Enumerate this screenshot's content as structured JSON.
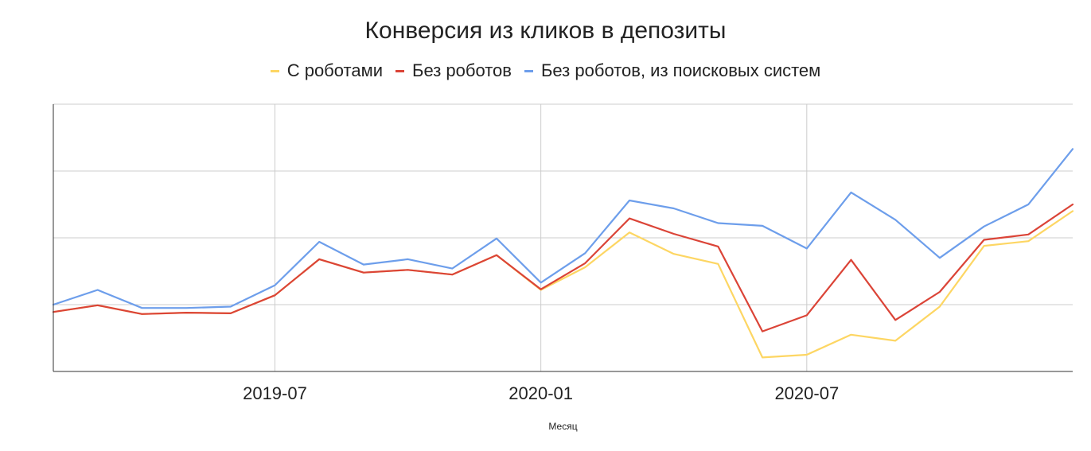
{
  "chart_data": {
    "type": "line",
    "title": "Конверсия из кликов в депозиты",
    "xlabel": "Месяц",
    "ylabel": "",
    "grid": true,
    "legend_position": "top",
    "x": [
      "2019-02",
      "2019-03",
      "2019-04",
      "2019-05",
      "2019-06",
      "2019-07",
      "2019-08",
      "2019-09",
      "2019-10",
      "2019-11",
      "2019-12",
      "2020-01",
      "2020-02",
      "2020-03",
      "2020-04",
      "2020-05",
      "2020-06",
      "2020-07",
      "2020-08",
      "2020-09",
      "2020-10",
      "2020-11",
      "2020-12",
      "2021-01"
    ],
    "x_ticks": [
      "2019-07",
      "2020-01",
      "2020-07"
    ],
    "ylim": [
      0,
      4
    ],
    "series": [
      {
        "name": "С роботами",
        "color": "#fdd663",
        "values": [
          0.89,
          0.99,
          0.86,
          0.88,
          0.87,
          1.14,
          1.68,
          1.48,
          1.52,
          1.45,
          1.74,
          1.22,
          1.56,
          2.08,
          1.76,
          1.61,
          0.21,
          0.25,
          0.55,
          0.46,
          0.97,
          1.88,
          1.95,
          2.4
        ]
      },
      {
        "name": "Без роботов",
        "color": "#db4437",
        "values": [
          0.89,
          0.99,
          0.86,
          0.88,
          0.87,
          1.14,
          1.68,
          1.48,
          1.52,
          1.45,
          1.74,
          1.23,
          1.62,
          2.29,
          2.06,
          1.87,
          0.6,
          0.84,
          1.67,
          0.77,
          1.19,
          1.97,
          2.05,
          2.5
        ]
      },
      {
        "name": "Без роботов, из поисковых систем",
        "color": "#6d9eeb",
        "values": [
          1.0,
          1.22,
          0.95,
          0.95,
          0.97,
          1.29,
          1.94,
          1.6,
          1.68,
          1.54,
          1.99,
          1.33,
          1.77,
          2.56,
          2.44,
          2.22,
          2.18,
          1.84,
          2.68,
          2.27,
          1.7,
          2.17,
          2.5,
          3.33
        ]
      }
    ]
  }
}
